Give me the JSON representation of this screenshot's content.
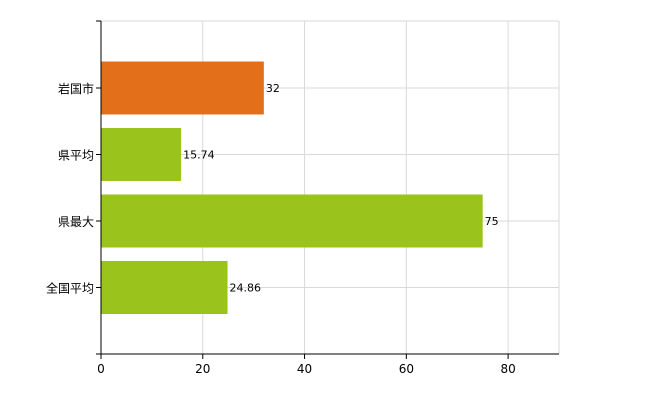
{
  "chart_data": {
    "type": "bar",
    "orientation": "horizontal",
    "categories": [
      "岩国市",
      "県平均",
      "県最大",
      "全国平均"
    ],
    "values": [
      32,
      15.74,
      75,
      24.86
    ],
    "value_labels": [
      "32",
      "15.74",
      "75",
      "24.86"
    ],
    "bar_colors": [
      "#e46f1a",
      "#9ac31c",
      "#9ac31c",
      "#9ac31c"
    ],
    "xlim": [
      0,
      90
    ],
    "xticks": [
      0,
      20,
      40,
      60,
      80
    ],
    "xtick_labels": [
      "0",
      "20",
      "40",
      "60",
      "80"
    ],
    "grid": true,
    "grid_color": "#d9d9d9",
    "legend": "none"
  }
}
